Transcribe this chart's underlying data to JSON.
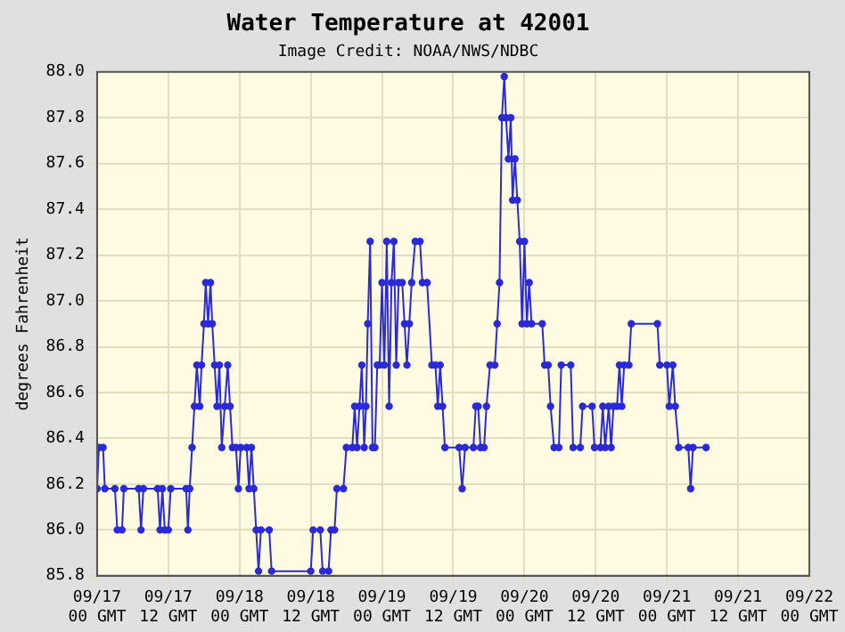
{
  "chart_data": {
    "type": "line",
    "title": "Water Temperature at 42001",
    "subtitle": "Image Credit: NOAA/NWS/NDBC",
    "ylabel": "degrees Fahrenheit",
    "xlim": [
      "--09-17T00:00",
      "--09-22T00:00"
    ],
    "xticks": [
      {
        "value": "--09-17T00:00",
        "label": "09/17\n00 GMT"
      },
      {
        "value": "--09-17T12:00",
        "label": "09/17\n12 GMT"
      },
      {
        "value": "--09-18T00:00",
        "label": "09/18\n00 GMT"
      },
      {
        "value": "--09-18T12:00",
        "label": "09/18\n12 GMT"
      },
      {
        "value": "--09-19T00:00",
        "label": "09/19\n00 GMT"
      },
      {
        "value": "--09-19T12:00",
        "label": "09/19\n12 GMT"
      },
      {
        "value": "--09-20T00:00",
        "label": "09/20\n00 GMT"
      },
      {
        "value": "--09-20T12:00",
        "label": "09/20\n12 GMT"
      },
      {
        "value": "--09-21T00:00",
        "label": "09/21\n00 GMT"
      },
      {
        "value": "--09-21T12:00",
        "label": "09/21\n12 GMT"
      },
      {
        "value": "--09-22T00:00",
        "label": "09/22\n00 GMT"
      }
    ],
    "ylim": [
      85.8,
      88.0
    ],
    "yticks": [
      85.8,
      {
        "value": 86,
        "label": "86.0"
      },
      86.2,
      86.4,
      86.6,
      86.8,
      {
        "value": 87,
        "label": "87.0"
      },
      87.2,
      87.4,
      87.6,
      87.8,
      {
        "value": 88,
        "label": "88.0"
      }
    ],
    "grid": true,
    "marker": "circle",
    "line_style": "solid",
    "series": [
      {
        "color": "#2a2ad8",
        "x": [
          "--09-17T00:00",
          "--09-17T00:18",
          "--09-17T01:00",
          "--09-17T01:18",
          "--09-17T03:00",
          "--09-17T03:24",
          "--09-17T04:12",
          "--09-17T04:30",
          "--09-17T07:00",
          "--09-17T07:24",
          "--09-17T07:48",
          "--09-17T10:12",
          "--09-17T10:36",
          "--09-17T11:00",
          "--09-17T11:24",
          "--09-17T12:00",
          "--09-17T12:24",
          "--09-17T15:00",
          "--09-17T15:18",
          "--09-17T15:36",
          "--09-17T16:00",
          "--09-17T16:24",
          "--09-17T16:48",
          "--09-17T17:18",
          "--09-17T17:36",
          "--09-17T18:00",
          "--09-17T18:18",
          "--09-17T18:42",
          "--09-17T19:06",
          "--09-17T19:24",
          "--09-17T19:48",
          "--09-17T20:12",
          "--09-17T20:36",
          "--09-17T21:00",
          "--09-17T21:30",
          "--09-17T22:00",
          "--09-17T22:24",
          "--09-17T22:48",
          "--09-17T23:24",
          "--09-17T23:48",
          "--09-18T00:12",
          "--09-18T01:12",
          "--09-18T01:36",
          "--09-18T02:00",
          "--09-18T02:24",
          "--09-18T02:48",
          "--09-18T03:12",
          "--09-18T03:36",
          "--09-18T05:00",
          "--09-18T05:24",
          "--09-18T12:00",
          "--09-18T12:24",
          "--09-18T13:36",
          "--09-18T14:00",
          "--09-18T15:00",
          "--09-18T15:24",
          "--09-18T16:00",
          "--09-18T16:24",
          "--09-18T17:30",
          "--09-18T18:00",
          "--09-18T19:00",
          "--09-18T19:24",
          "--09-18T19:48",
          "--09-18T20:12",
          "--09-18T20:36",
          "--09-18T21:00",
          "--09-18T21:18",
          "--09-18T21:36",
          "--09-18T22:00",
          "--09-18T22:24",
          "--09-18T22:48",
          "--09-18T23:12",
          "--09-18T23:36",
          "--09-19T00:00",
          "--09-19T00:24",
          "--09-19T00:48",
          "--09-19T01:12",
          "--09-19T01:36",
          "--09-19T02:00",
          "--09-19T02:24",
          "--09-19T02:48",
          "--09-19T03:24",
          "--09-19T03:48",
          "--09-19T04:12",
          "--09-19T04:36",
          "--09-19T05:00",
          "--09-19T05:36",
          "--09-19T06:24",
          "--09-19T06:48",
          "--09-19T07:36",
          "--09-19T08:24",
          "--09-19T09:00",
          "--09-19T09:24",
          "--09-19T09:48",
          "--09-19T10:12",
          "--09-19T10:36",
          "--09-19T13:00",
          "--09-19T13:30",
          "--09-19T14:00",
          "--09-19T15:24",
          "--09-19T15:48",
          "--09-19T16:12",
          "--09-19T16:36",
          "--09-19T17:12",
          "--09-19T17:36",
          "--09-19T18:12",
          "--09-19T19:00",
          "--09-19T19:24",
          "--09-19T19:48",
          "--09-19T20:12",
          "--09-19T20:36",
          "--09-19T20:54",
          "--09-19T21:18",
          "--09-19T21:42",
          "--09-19T22:00",
          "--09-19T22:24",
          "--09-19T22:48",
          "--09-19T23:12",
          "--09-19T23:36",
          "--09-20T00:00",
          "--09-20T00:24",
          "--09-20T00:48",
          "--09-20T01:12",
          "--09-20T03:00",
          "--09-20T03:24",
          "--09-20T04:00",
          "--09-20T04:24",
          "--09-20T05:00",
          "--09-20T05:48",
          "--09-20T06:12",
          "--09-20T07:48",
          "--09-20T08:12",
          "--09-20T09:24",
          "--09-20T09:48",
          "--09-20T11:24",
          "--09-20T11:48",
          "--09-20T12:48",
          "--09-20T13:12",
          "--09-20T13:36",
          "--09-20T14:12",
          "--09-20T14:36",
          "--09-20T15:00",
          "--09-20T15:36",
          "--09-20T16:00",
          "--09-20T16:24",
          "--09-20T16:48",
          "--09-20T17:36",
          "--09-20T18:00",
          "--09-20T22:24",
          "--09-20T22:48",
          "--09-21T00:00",
          "--09-21T00:24",
          "--09-21T01:00",
          "--09-21T01:24",
          "--09-21T02:00",
          "--09-21T03:36",
          "--09-21T04:00",
          "--09-21T04:24",
          "--09-21T06:36"
        ],
        "values": [
          86.18,
          86.36,
          86.36,
          86.18,
          86.18,
          86.0,
          86.0,
          86.18,
          86.18,
          86.0,
          86.18,
          86.18,
          86.0,
          86.18,
          86.0,
          86.0,
          86.18,
          86.18,
          86.0,
          86.18,
          86.36,
          86.54,
          86.72,
          86.54,
          86.72,
          86.9,
          87.08,
          86.9,
          87.08,
          86.9,
          86.72,
          86.54,
          86.72,
          86.36,
          86.54,
          86.72,
          86.54,
          86.36,
          86.36,
          86.18,
          86.36,
          86.36,
          86.18,
          86.36,
          86.18,
          86.0,
          85.82,
          86.0,
          86.0,
          85.82,
          85.82,
          86.0,
          86.0,
          85.82,
          85.82,
          86.0,
          86.0,
          86.18,
          86.18,
          86.36,
          86.36,
          86.54,
          86.36,
          86.54,
          86.72,
          86.36,
          86.54,
          86.9,
          87.26,
          86.36,
          86.36,
          86.72,
          86.72,
          87.08,
          86.72,
          87.26,
          86.54,
          87.08,
          87.26,
          86.72,
          87.08,
          87.08,
          86.9,
          86.72,
          86.9,
          87.08,
          87.26,
          87.26,
          87.08,
          87.08,
          86.72,
          86.72,
          86.54,
          86.72,
          86.54,
          86.36,
          86.36,
          86.18,
          86.36,
          86.36,
          86.54,
          86.54,
          86.36,
          86.36,
          86.54,
          86.72,
          86.72,
          86.9,
          87.08,
          87.8,
          87.98,
          87.8,
          87.62,
          87.8,
          87.44,
          87.62,
          87.44,
          87.26,
          86.9,
          87.26,
          86.9,
          87.08,
          86.9,
          86.9,
          86.72,
          86.72,
          86.54,
          86.36,
          86.36,
          86.72,
          86.72,
          86.36,
          86.36,
          86.54,
          86.54,
          86.36,
          86.36,
          86.54,
          86.36,
          86.54,
          86.36,
          86.54,
          86.54,
          86.72,
          86.54,
          86.72,
          86.72,
          86.9,
          86.9,
          86.72,
          86.72,
          86.54,
          86.72,
          86.54,
          86.36,
          86.36,
          86.18,
          86.36,
          86.36
        ]
      }
    ]
  }
}
